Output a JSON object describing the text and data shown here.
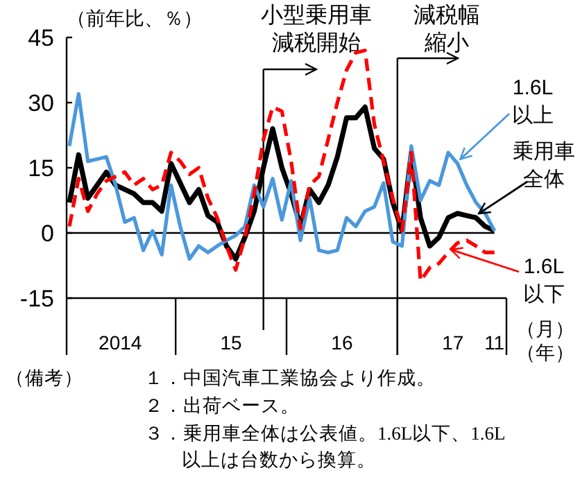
{
  "chart_data": {
    "type": "line",
    "ylabel": "（前年比、％）",
    "xlabel": "（月）（年）",
    "x": [
      "2014-01",
      "2014-02",
      "2014-03",
      "2014-04",
      "2014-05",
      "2014-06",
      "2014-07",
      "2014-08",
      "2014-09",
      "2014-10",
      "2014-11",
      "2014-12",
      "2015-01",
      "2015-02",
      "2015-03",
      "2015-04",
      "2015-05",
      "2015-06",
      "2015-07",
      "2015-08",
      "2015-09",
      "2015-10",
      "2015-11",
      "2015-12",
      "2016-01",
      "2016-02",
      "2016-03",
      "2016-04",
      "2016-05",
      "2016-06",
      "2016-07",
      "2016-08",
      "2016-09",
      "2016-10",
      "2016-11",
      "2016-12",
      "2017-01",
      "2017-02",
      "2017-03",
      "2017-04",
      "2017-05",
      "2017-06",
      "2017-07",
      "2017-08",
      "2017-09",
      "2017-10",
      "2017-11"
    ],
    "series": [
      {
        "name": "乗用車全体",
        "color": "#000000",
        "line_style": "solid",
        "values": [
          7,
          18,
          8,
          11,
          14,
          11,
          10,
          9,
          7,
          7,
          5,
          16,
          11.5,
          7,
          10,
          4,
          2.5,
          -3,
          -6,
          -1,
          5,
          15,
          24,
          15,
          9,
          1.5,
          10,
          7,
          11,
          17.5,
          26.5,
          26.5,
          29,
          19.5,
          17,
          7,
          0.5,
          18.5,
          3.5,
          -3,
          -1,
          3.5,
          4.5,
          4,
          3.5,
          1.5,
          0.5
        ]
      },
      {
        "name": "1.6L以上",
        "color": "#4a98dc",
        "line_style": "solid",
        "values": [
          20,
          32,
          16.5,
          17,
          17.5,
          11,
          2.5,
          3.5,
          -4,
          0.5,
          -5,
          11,
          1.5,
          -6,
          -3,
          -4.5,
          -3,
          -1.7,
          -0.6,
          1.5,
          11,
          6,
          12.5,
          3,
          12,
          -1.7,
          8,
          -4,
          -4.5,
          -4,
          3.5,
          1.5,
          5,
          6,
          11.5,
          -2,
          -3,
          20,
          7.5,
          12,
          11,
          18.5,
          16,
          11,
          7,
          4.5,
          0.5
        ]
      },
      {
        "name": "1.6L以下",
        "color": "#ff0000",
        "line_style": "dashed",
        "values": [
          1.5,
          12.5,
          5,
          9,
          12,
          13,
          14,
          11,
          12.5,
          10,
          11,
          18.5,
          16.5,
          13.5,
          15,
          8,
          3.5,
          -3,
          -8.5,
          -1,
          9,
          21.5,
          29,
          28,
          16.5,
          1,
          11,
          13,
          21.5,
          30,
          37.5,
          41.5,
          42,
          25,
          16.5,
          8,
          0.5,
          18.5,
          -11,
          -8,
          -7,
          -4.5,
          -2.3,
          -1.7,
          -3,
          -4.5,
          -4.5
        ]
      }
    ],
    "ylim": [
      -15,
      45
    ],
    "yticks": [
      -15,
      0,
      15,
      30,
      45
    ],
    "xlim": [
      "2013-12-22",
      "2017-12-10"
    ],
    "xticks": [
      {
        "value": "2014-06-16",
        "label": "2014"
      },
      {
        "value": "2015-06-16",
        "label": "15"
      },
      {
        "value": "2016-06-16",
        "label": "16"
      },
      {
        "value": "2017-06-16",
        "label": "17"
      },
      {
        "value": "2017-11",
        "label": "11"
      }
    ],
    "ref_lines": [
      {
        "axis": "y",
        "value": 0,
        "color": "#000000"
      },
      {
        "axis": "x",
        "value": "2015-10",
        "label": "小型乗用車減税開始",
        "color": "#000000"
      },
      {
        "axis": "x",
        "value": "2016-12-16",
        "label": "減税幅縮小",
        "color": "#000000"
      }
    ],
    "annotations": [
      "（備考）",
      "１．中国汽車工業協会より作成。",
      "２．出荷ベース。",
      "３．乗用車全体は公表値。1.6L以下、1.6L以上は台数から換算。"
    ],
    "legend": "right"
  }
}
